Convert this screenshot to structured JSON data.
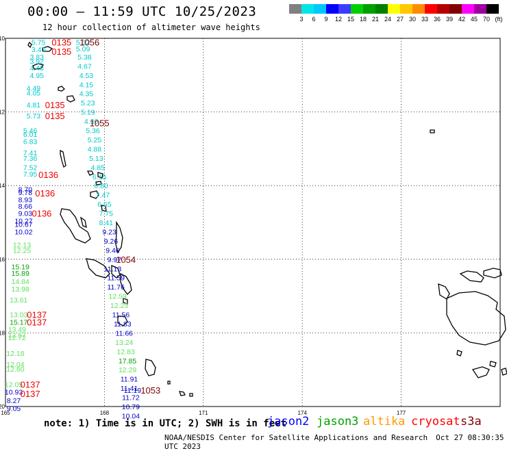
{
  "header": {
    "title": "00:00 – 11:59 UTC 10/25/2023",
    "subtitle": "12 hour collection of altimeter wave heights"
  },
  "legend": {
    "colors": [
      "#808080",
      "#00e5e5",
      "#00c8ff",
      "#0000ff",
      "#3c3cff",
      "#00d000",
      "#00a000",
      "#008000",
      "#ffff00",
      "#ffc800",
      "#ff8c00",
      "#ff0000",
      "#b40000",
      "#800000",
      "#ff00ff",
      "#a000a0",
      "#000000"
    ],
    "labels": [
      "3",
      "6",
      "9",
      "12",
      "15",
      "18",
      "21",
      "24",
      "27",
      "30",
      "33",
      "36",
      "39",
      "42",
      "45",
      "70",
      "(ft)"
    ]
  },
  "axes": {
    "lat_labels": [
      "-10",
      "-12",
      "-14",
      "-16",
      "-18",
      "-20"
    ],
    "lon_labels": [
      "165",
      "168",
      "171",
      "174",
      "177"
    ]
  },
  "color_key": {
    "cyan": "#00c8c8",
    "blue": "#0000cc",
    "lightgreen": "#60e060",
    "green": "#00a000",
    "red": "#ee0000",
    "darkred": "#800000"
  },
  "readings": [
    {
      "t": "5.75",
      "c": "cyan",
      "lat": -10.1,
      "lon": 166.0
    },
    {
      "t": "3.40",
      "c": "cyan",
      "lat": -10.3,
      "lon": 166.0
    },
    {
      "t": "3.83",
      "c": "cyan",
      "lat": -10.5,
      "lon": 165.95
    },
    {
      "t": "3.92",
      "c": "cyan",
      "lat": -10.62,
      "lon": 165.95
    },
    {
      "t": "4.48",
      "c": "cyan",
      "lat": -10.8,
      "lon": 165.95
    },
    {
      "t": "4.95",
      "c": "cyan",
      "lat": -11.0,
      "lon": 165.95
    },
    {
      "t": "4.49",
      "c": "cyan",
      "lat": -11.35,
      "lon": 165.85
    },
    {
      "t": "4.05",
      "c": "cyan",
      "lat": -11.48,
      "lon": 165.85
    },
    {
      "t": "4.81",
      "c": "cyan",
      "lat": -11.8,
      "lon": 165.85
    },
    {
      "t": "5.73",
      "c": "cyan",
      "lat": -12.1,
      "lon": 165.85
    },
    {
      "t": "5.46",
      "c": "cyan",
      "lat": -12.5,
      "lon": 165.75
    },
    {
      "t": "6.01",
      "c": "cyan",
      "lat": -12.6,
      "lon": 165.75
    },
    {
      "t": "6.83",
      "c": "cyan",
      "lat": -12.8,
      "lon": 165.75
    },
    {
      "t": "7.41",
      "c": "cyan",
      "lat": -13.1,
      "lon": 165.75
    },
    {
      "t": "7.36",
      "c": "cyan",
      "lat": -13.25,
      "lon": 165.75
    },
    {
      "t": "7.52",
      "c": "cyan",
      "lat": -13.5,
      "lon": 165.75
    },
    {
      "t": "7.95",
      "c": "cyan",
      "lat": -13.68,
      "lon": 165.75
    },
    {
      "t": "8.70",
      "c": "blue",
      "lat": -14.1,
      "lon": 165.6
    },
    {
      "t": "9.78",
      "c": "blue",
      "lat": -14.18,
      "lon": 165.6
    },
    {
      "t": "8.93",
      "c": "blue",
      "lat": -14.38,
      "lon": 165.6
    },
    {
      "t": "8.66",
      "c": "blue",
      "lat": -14.55,
      "lon": 165.6
    },
    {
      "t": "9.03",
      "c": "blue",
      "lat": -14.75,
      "lon": 165.6
    },
    {
      "t": "10.27",
      "c": "blue",
      "lat": -14.95,
      "lon": 165.55
    },
    {
      "t": "10.67",
      "c": "blue",
      "lat": -15.05,
      "lon": 165.55
    },
    {
      "t": "10.02",
      "c": "blue",
      "lat": -15.25,
      "lon": 165.55
    },
    {
      "t": "12.13",
      "c": "lightgreen",
      "lat": -15.6,
      "lon": 165.5
    },
    {
      "t": "12.25",
      "c": "lightgreen",
      "lat": -15.75,
      "lon": 165.5
    },
    {
      "t": "15.19",
      "c": "green",
      "lat": -16.2,
      "lon": 165.45
    },
    {
      "t": "15.89",
      "c": "green",
      "lat": -16.38,
      "lon": 165.45
    },
    {
      "t": "14.84",
      "c": "lightgreen",
      "lat": -16.6,
      "lon": 165.45
    },
    {
      "t": "13.98",
      "c": "lightgreen",
      "lat": -16.8,
      "lon": 165.45
    },
    {
      "t": "13.61",
      "c": "lightgreen",
      "lat": -17.1,
      "lon": 165.4
    },
    {
      "t": "13.03",
      "c": "lightgreen",
      "lat": -17.5,
      "lon": 165.4
    },
    {
      "t": "15.17",
      "c": "green",
      "lat": -17.7,
      "lon": 165.4
    },
    {
      "t": "13.49",
      "c": "lightgreen",
      "lat": -17.9,
      "lon": 165.35
    },
    {
      "t": "12.57",
      "c": "lightgreen",
      "lat": -18.05,
      "lon": 165.35
    },
    {
      "t": "12.72",
      "c": "lightgreen",
      "lat": -18.12,
      "lon": 165.35
    },
    {
      "t": "12.18",
      "c": "lightgreen",
      "lat": -18.55,
      "lon": 165.3
    },
    {
      "t": "12.04",
      "c": "lightgreen",
      "lat": -18.85,
      "lon": 165.3
    },
    {
      "t": "12.80",
      "c": "lightgreen",
      "lat": -18.98,
      "lon": 165.3
    },
    {
      "t": "12.05",
      "c": "lightgreen",
      "lat": -19.4,
      "lon": 165.25
    },
    {
      "t": "10.93",
      "c": "blue",
      "lat": -19.6,
      "lon": 165.25
    },
    {
      "t": "8.27",
      "c": "blue",
      "lat": -19.83,
      "lon": 165.25
    },
    {
      "t": "9.05",
      "c": "blue",
      "lat": -20.05,
      "lon": 165.25
    },
    {
      "t": "5.32",
      "c": "cyan",
      "lat": -10.1,
      "lon": 167.35
    },
    {
      "t": "5.09",
      "c": "cyan",
      "lat": -10.28,
      "lon": 167.35
    },
    {
      "t": "5.38",
      "c": "cyan",
      "lat": -10.5,
      "lon": 167.4
    },
    {
      "t": "4.67",
      "c": "cyan",
      "lat": -10.75,
      "lon": 167.4
    },
    {
      "t": "4.53",
      "c": "cyan",
      "lat": -11.0,
      "lon": 167.45
    },
    {
      "t": "4.15",
      "c": "cyan",
      "lat": -11.25,
      "lon": 167.45
    },
    {
      "t": "4.35",
      "c": "cyan",
      "lat": -11.5,
      "lon": 167.45
    },
    {
      "t": "5.23",
      "c": "cyan",
      "lat": -11.75,
      "lon": 167.5
    },
    {
      "t": "5.19",
      "c": "cyan",
      "lat": -12.0,
      "lon": 167.5
    },
    {
      "t": "4.36",
      "c": "cyan",
      "lat": -12.25,
      "lon": 167.6
    },
    {
      "t": "5.36",
      "c": "cyan",
      "lat": -12.5,
      "lon": 167.65
    },
    {
      "t": "5.25",
      "c": "cyan",
      "lat": -12.75,
      "lon": 167.7
    },
    {
      "t": "4.88",
      "c": "cyan",
      "lat": -13.0,
      "lon": 167.7
    },
    {
      "t": "5.13",
      "c": "cyan",
      "lat": -13.25,
      "lon": 167.75
    },
    {
      "t": "4.85",
      "c": "cyan",
      "lat": -13.5,
      "lon": 167.8
    },
    {
      "t": "6.15",
      "c": "cyan",
      "lat": -13.75,
      "lon": 167.85
    },
    {
      "t": "6.80",
      "c": "cyan",
      "lat": -14.0,
      "lon": 167.9
    },
    {
      "t": "7.47",
      "c": "cyan",
      "lat": -14.25,
      "lon": 167.95
    },
    {
      "t": "6.65",
      "c": "cyan",
      "lat": -14.5,
      "lon": 168.0
    },
    {
      "t": "7.75",
      "c": "cyan",
      "lat": -14.75,
      "lon": 168.05
    },
    {
      "t": "8.41",
      "c": "cyan",
      "lat": -15.0,
      "lon": 168.05
    },
    {
      "t": "9.23",
      "c": "blue",
      "lat": -15.25,
      "lon": 168.15
    },
    {
      "t": "9.26",
      "c": "blue",
      "lat": -15.5,
      "lon": 168.2
    },
    {
      "t": "9.46",
      "c": "blue",
      "lat": -15.75,
      "lon": 168.25
    },
    {
      "t": "9.97",
      "c": "blue",
      "lat": -16.0,
      "lon": 168.3
    },
    {
      "t": "11.13",
      "c": "blue",
      "lat": -16.25,
      "lon": 168.25
    },
    {
      "t": "11.59",
      "c": "blue",
      "lat": -16.5,
      "lon": 168.35
    },
    {
      "t": "11.76",
      "c": "blue",
      "lat": -16.75,
      "lon": 168.35
    },
    {
      "t": "12.59",
      "c": "lightgreen",
      "lat": -17.0,
      "lon": 168.4
    },
    {
      "t": "12.25",
      "c": "lightgreen",
      "lat": -17.25,
      "lon": 168.45
    },
    {
      "t": "11.56",
      "c": "blue",
      "lat": -17.5,
      "lon": 168.5
    },
    {
      "t": "11.83",
      "c": "blue",
      "lat": -17.75,
      "lon": 168.55
    },
    {
      "t": "11.66",
      "c": "blue",
      "lat": -18.0,
      "lon": 168.6
    },
    {
      "t": "13.24",
      "c": "lightgreen",
      "lat": -18.25,
      "lon": 168.6
    },
    {
      "t": "12.83",
      "c": "lightgreen",
      "lat": -18.5,
      "lon": 168.65
    },
    {
      "t": "17.85",
      "c": "green",
      "lat": -18.75,
      "lon": 168.7
    },
    {
      "t": "12.29",
      "c": "lightgreen",
      "lat": -19.0,
      "lon": 168.7
    },
    {
      "t": "11.91",
      "c": "blue",
      "lat": -19.25,
      "lon": 168.75
    },
    {
      "t": "11.41",
      "c": "blue",
      "lat": -19.5,
      "lon": 168.75
    },
    {
      "t": "11.19",
      "c": "blue",
      "lat": -19.55,
      "lon": 168.85
    },
    {
      "t": "11.72",
      "c": "blue",
      "lat": -19.75,
      "lon": 168.8
    },
    {
      "t": "10.79",
      "c": "blue",
      "lat": -20.0,
      "lon": 168.8
    },
    {
      "t": "10.04",
      "c": "blue",
      "lat": -20.25,
      "lon": 168.8
    }
  ],
  "time_labels": [
    {
      "t": "0135",
      "c": "red",
      "lat": -10.1,
      "lon": 166.7
    },
    {
      "t": "0135",
      "c": "red",
      "lat": -10.35,
      "lon": 166.7
    },
    {
      "t": "1056",
      "c": "darkred",
      "lat": -10.1,
      "lon": 167.55
    },
    {
      "t": "0135",
      "c": "red",
      "lat": -11.8,
      "lon": 166.5
    },
    {
      "t": "0135",
      "c": "red",
      "lat": -12.1,
      "lon": 166.5
    },
    {
      "t": "1055",
      "c": "darkred",
      "lat": -12.3,
      "lon": 167.85
    },
    {
      "t": "0136",
      "c": "red",
      "lat": -13.7,
      "lon": 166.3
    },
    {
      "t": "0136",
      "c": "red",
      "lat": -14.2,
      "lon": 166.2
    },
    {
      "t": "0136",
      "c": "red",
      "lat": -14.75,
      "lon": 166.1
    },
    {
      "t": "1054",
      "c": "darkred",
      "lat": -16.0,
      "lon": 168.65
    },
    {
      "t": "0137",
      "c": "red",
      "lat": -17.5,
      "lon": 165.95
    },
    {
      "t": "0137",
      "c": "red",
      "lat": -17.7,
      "lon": 165.95
    },
    {
      "t": "1053",
      "c": "darkred",
      "lat": -19.55,
      "lon": 169.4
    },
    {
      "t": "0137",
      "c": "red",
      "lat": -19.4,
      "lon": 165.75
    },
    {
      "t": "0137",
      "c": "red",
      "lat": -19.65,
      "lon": 165.75
    }
  ],
  "footer": {
    "note": "note: 1) Time is in UTC; 2) SWH is in feet",
    "satellites": [
      {
        "name": "jason2",
        "color": "#0000ff"
      },
      {
        "name": "jason3",
        "color": "#00a000"
      },
      {
        "name": "altika",
        "color": "#ff9900"
      },
      {
        "name": "cryosat",
        "color": "#ff0000"
      },
      {
        "name": "s3a",
        "color": "#800000"
      }
    ],
    "credit": "NOAA/NESDIS Center for Satellite Applications and Research",
    "date": "Oct 27 08:30:35 UTC 2023"
  }
}
